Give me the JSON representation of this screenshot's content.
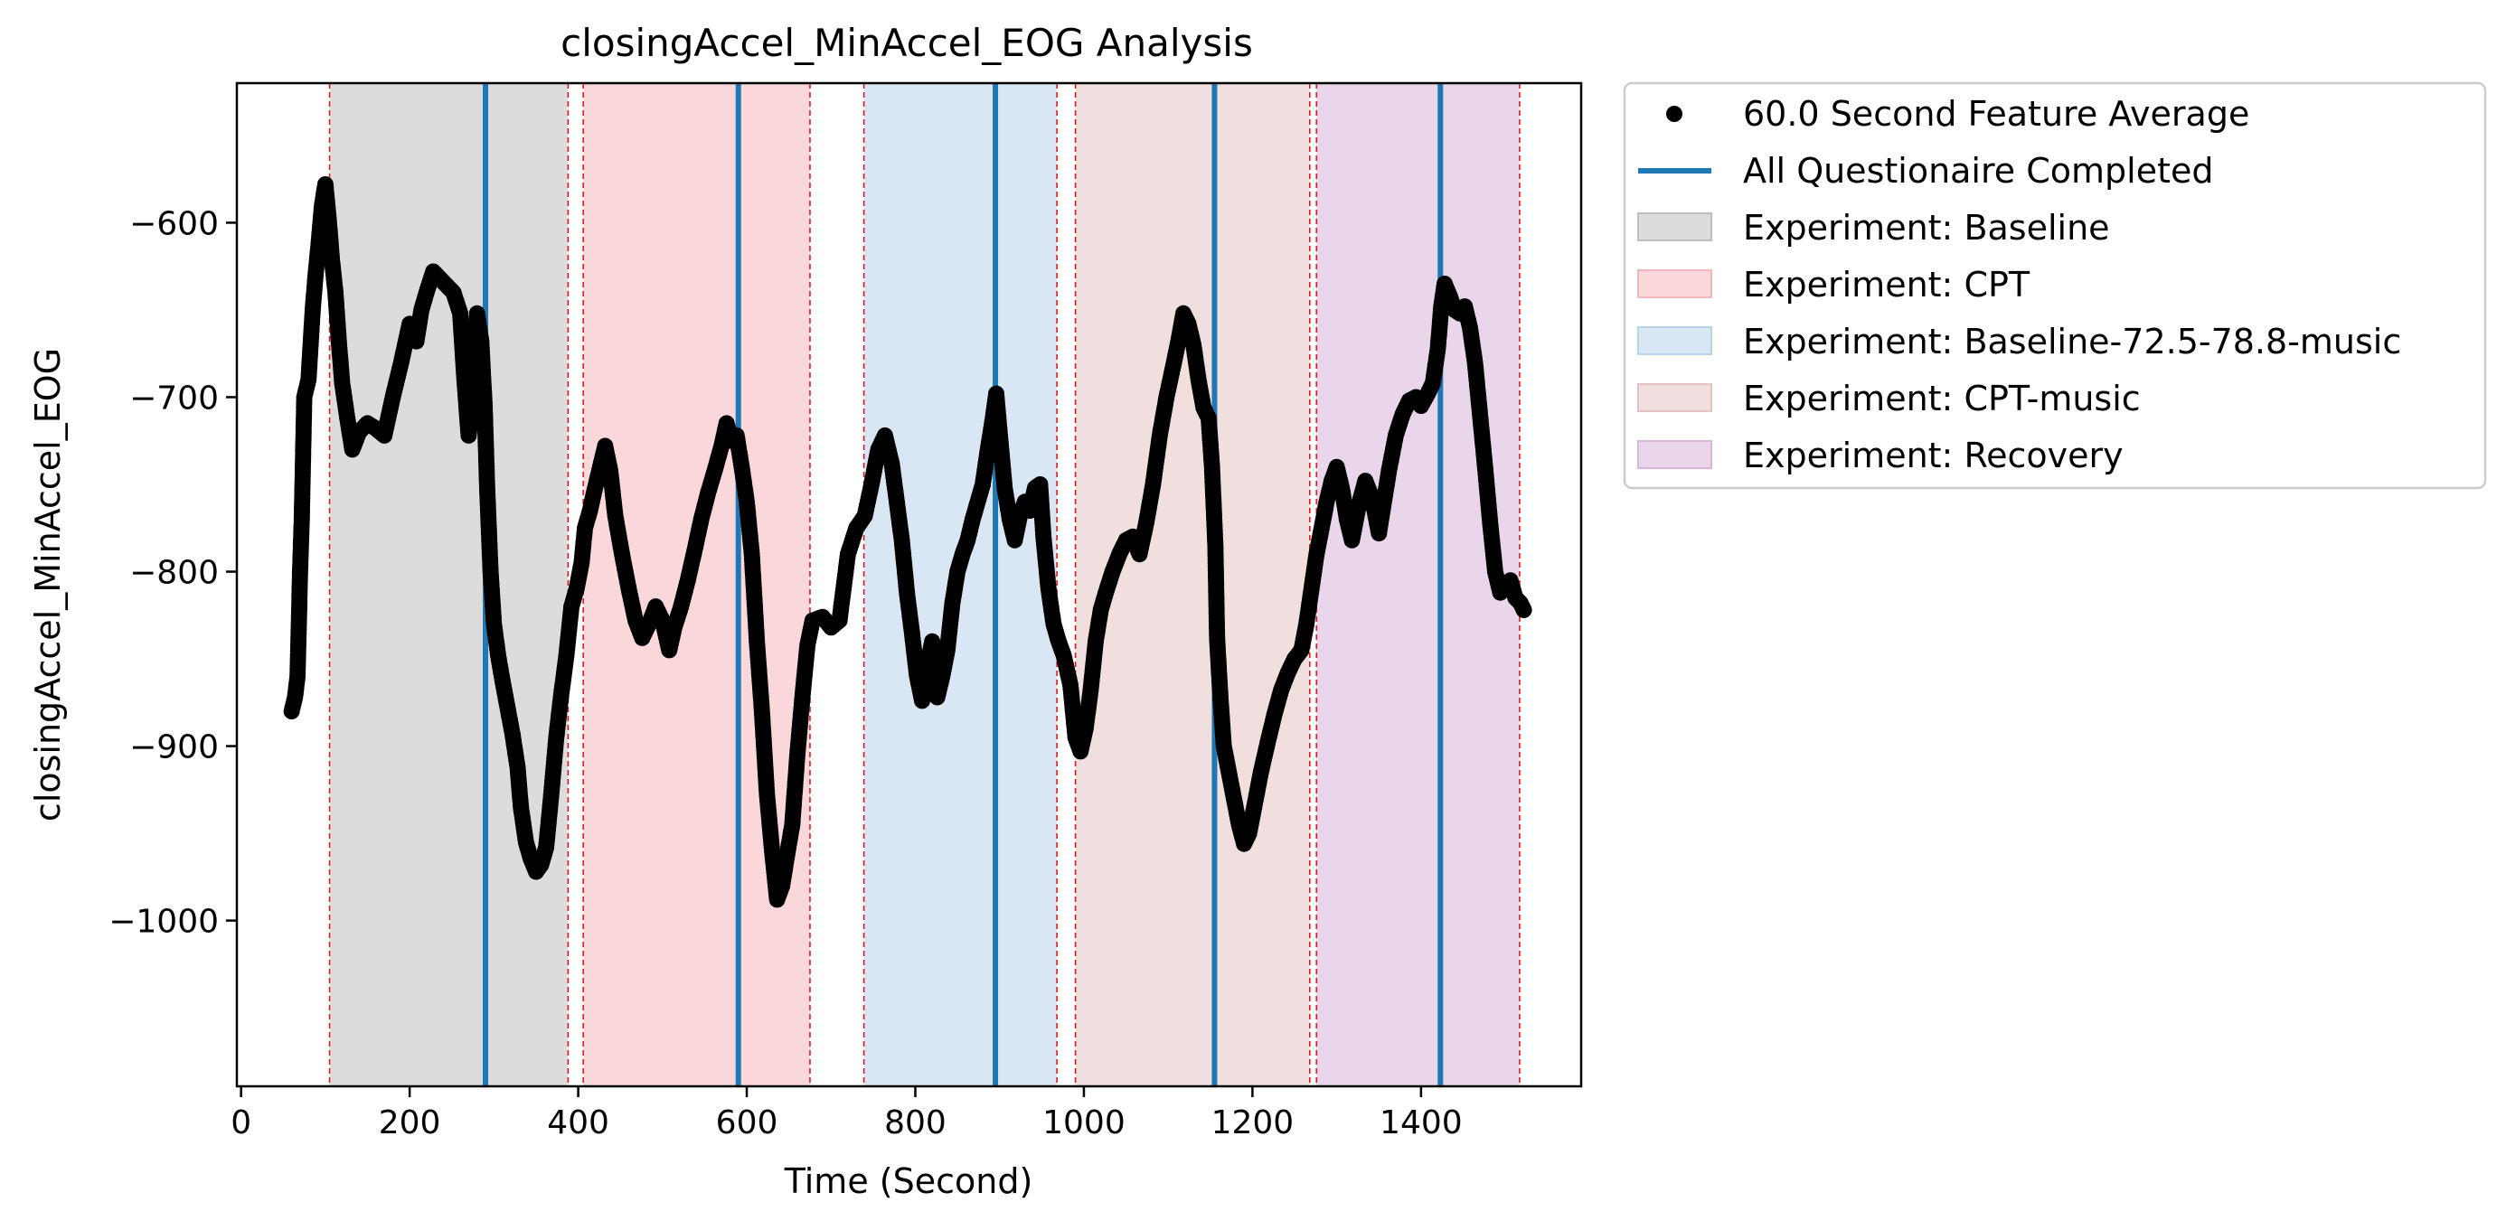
{
  "chart_data": {
    "type": "scatter",
    "title": "closingAccel_MinAccel_EOG Analysis",
    "xlabel": "Time (Second)",
    "ylabel": "closingAccel_MinAccel_EOG",
    "xlim": [
      -5,
      1590
    ],
    "ylim": [
      -1095,
      -520
    ],
    "xticks": [
      0,
      200,
      400,
      600,
      800,
      1000,
      1200,
      1400
    ],
    "yticks": [
      -600,
      -700,
      -800,
      -900,
      -1000
    ],
    "xtick_labels": [
      "0",
      "200",
      "400",
      "600",
      "800",
      "1000",
      "1200",
      "1400"
    ],
    "ytick_labels": [
      "−600",
      "−700",
      "−800",
      "−900",
      "−1000"
    ],
    "grid": false,
    "legend_position": "outside-right-top",
    "series": [
      {
        "name": "60.0 Second Feature Average",
        "marker": "circle",
        "color": "#000000",
        "anchors": [
          [
            60,
            -880
          ],
          [
            64,
            -872
          ],
          [
            67,
            -860
          ],
          [
            70,
            -800
          ],
          [
            72,
            -770
          ],
          [
            75,
            -700
          ],
          [
            80,
            -690
          ],
          [
            85,
            -650
          ],
          [
            88,
            -632
          ],
          [
            92,
            -612
          ],
          [
            96,
            -590
          ],
          [
            100,
            -578
          ],
          [
            104,
            -598
          ],
          [
            108,
            -622
          ],
          [
            112,
            -640
          ],
          [
            116,
            -668
          ],
          [
            120,
            -692
          ],
          [
            126,
            -712
          ],
          [
            132,
            -730
          ],
          [
            140,
            -720
          ],
          [
            150,
            -715
          ],
          [
            160,
            -718
          ],
          [
            170,
            -722
          ],
          [
            180,
            -700
          ],
          [
            190,
            -680
          ],
          [
            200,
            -658
          ],
          [
            208,
            -668
          ],
          [
            214,
            -650
          ],
          [
            220,
            -640
          ],
          [
            228,
            -628
          ],
          [
            240,
            -634
          ],
          [
            252,
            -640
          ],
          [
            260,
            -652
          ],
          [
            265,
            -690
          ],
          [
            270,
            -722
          ],
          [
            275,
            -700
          ],
          [
            280,
            -652
          ],
          [
            285,
            -668
          ],
          [
            289,
            -705
          ],
          [
            292,
            -752
          ],
          [
            296,
            -800
          ],
          [
            300,
            -830
          ],
          [
            305,
            -848
          ],
          [
            310,
            -862
          ],
          [
            315,
            -875
          ],
          [
            322,
            -893
          ],
          [
            328,
            -912
          ],
          [
            332,
            -935
          ],
          [
            338,
            -955
          ],
          [
            344,
            -965
          ],
          [
            350,
            -972
          ],
          [
            356,
            -968
          ],
          [
            362,
            -958
          ],
          [
            368,
            -928
          ],
          [
            374,
            -895
          ],
          [
            380,
            -870
          ],
          [
            386,
            -848
          ],
          [
            392,
            -820
          ],
          [
            398,
            -810
          ],
          [
            404,
            -795
          ],
          [
            408,
            -775
          ],
          [
            414,
            -765
          ],
          [
            420,
            -752
          ],
          [
            426,
            -740
          ],
          [
            432,
            -728
          ],
          [
            438,
            -742
          ],
          [
            444,
            -768
          ],
          [
            452,
            -790
          ],
          [
            460,
            -810
          ],
          [
            468,
            -828
          ],
          [
            476,
            -838
          ],
          [
            484,
            -830
          ],
          [
            492,
            -820
          ],
          [
            500,
            -828
          ],
          [
            508,
            -845
          ],
          [
            514,
            -832
          ],
          [
            522,
            -820
          ],
          [
            530,
            -805
          ],
          [
            538,
            -788
          ],
          [
            546,
            -770
          ],
          [
            554,
            -755
          ],
          [
            562,
            -742
          ],
          [
            570,
            -728
          ],
          [
            576,
            -715
          ],
          [
            582,
            -725
          ],
          [
            588,
            -722
          ],
          [
            594,
            -740
          ],
          [
            600,
            -760
          ],
          [
            606,
            -790
          ],
          [
            612,
            -840
          ],
          [
            618,
            -880
          ],
          [
            624,
            -928
          ],
          [
            630,
            -960
          ],
          [
            636,
            -988
          ],
          [
            642,
            -980
          ],
          [
            648,
            -962
          ],
          [
            654,
            -945
          ],
          [
            660,
            -905
          ],
          [
            666,
            -872
          ],
          [
            672,
            -842
          ],
          [
            678,
            -828
          ],
          [
            690,
            -826
          ],
          [
            700,
            -832
          ],
          [
            710,
            -828
          ],
          [
            720,
            -790
          ],
          [
            730,
            -775
          ],
          [
            740,
            -768
          ],
          [
            748,
            -750
          ],
          [
            756,
            -730
          ],
          [
            764,
            -722
          ],
          [
            772,
            -738
          ],
          [
            778,
            -760
          ],
          [
            784,
            -782
          ],
          [
            790,
            -812
          ],
          [
            796,
            -835
          ],
          [
            802,
            -860
          ],
          [
            808,
            -874
          ],
          [
            814,
            -855
          ],
          [
            820,
            -840
          ],
          [
            826,
            -872
          ],
          [
            832,
            -860
          ],
          [
            838,
            -845
          ],
          [
            844,
            -818
          ],
          [
            850,
            -800
          ],
          [
            856,
            -790
          ],
          [
            862,
            -782
          ],
          [
            868,
            -770
          ],
          [
            874,
            -760
          ],
          [
            880,
            -750
          ],
          [
            886,
            -730
          ],
          [
            892,
            -712
          ],
          [
            896,
            -698
          ],
          [
            900,
            -720
          ],
          [
            906,
            -752
          ],
          [
            912,
            -770
          ],
          [
            918,
            -782
          ],
          [
            924,
            -768
          ],
          [
            930,
            -760
          ],
          [
            936,
            -765
          ],
          [
            942,
            -752
          ],
          [
            948,
            -750
          ],
          [
            952,
            -780
          ],
          [
            958,
            -810
          ],
          [
            964,
            -830
          ],
          [
            970,
            -840
          ],
          [
            976,
            -848
          ],
          [
            984,
            -865
          ],
          [
            990,
            -895
          ],
          [
            996,
            -903
          ],
          [
            1002,
            -890
          ],
          [
            1008,
            -868
          ],
          [
            1014,
            -840
          ],
          [
            1020,
            -822
          ],
          [
            1026,
            -812
          ],
          [
            1034,
            -800
          ],
          [
            1042,
            -790
          ],
          [
            1050,
            -782
          ],
          [
            1058,
            -780
          ],
          [
            1066,
            -790
          ],
          [
            1074,
            -772
          ],
          [
            1082,
            -750
          ],
          [
            1090,
            -722
          ],
          [
            1098,
            -700
          ],
          [
            1106,
            -682
          ],
          [
            1112,
            -668
          ],
          [
            1118,
            -652
          ],
          [
            1124,
            -658
          ],
          [
            1130,
            -670
          ],
          [
            1136,
            -690
          ],
          [
            1142,
            -706
          ],
          [
            1148,
            -712
          ],
          [
            1152,
            -740
          ],
          [
            1156,
            -785
          ],
          [
            1158,
            -838
          ],
          [
            1162,
            -872
          ],
          [
            1166,
            -900
          ],
          [
            1172,
            -915
          ],
          [
            1178,
            -930
          ],
          [
            1184,
            -945
          ],
          [
            1190,
            -956
          ],
          [
            1196,
            -950
          ],
          [
            1202,
            -935
          ],
          [
            1210,
            -915
          ],
          [
            1218,
            -898
          ],
          [
            1226,
            -882
          ],
          [
            1234,
            -868
          ],
          [
            1242,
            -858
          ],
          [
            1250,
            -850
          ],
          [
            1258,
            -845
          ],
          [
            1264,
            -830
          ],
          [
            1270,
            -810
          ],
          [
            1276,
            -790
          ],
          [
            1282,
            -775
          ],
          [
            1288,
            -760
          ],
          [
            1294,
            -748
          ],
          [
            1300,
            -740
          ],
          [
            1306,
            -752
          ],
          [
            1312,
            -770
          ],
          [
            1318,
            -782
          ],
          [
            1326,
            -762
          ],
          [
            1334,
            -748
          ],
          [
            1342,
            -758
          ],
          [
            1350,
            -778
          ],
          [
            1356,
            -760
          ],
          [
            1362,
            -742
          ],
          [
            1370,
            -722
          ],
          [
            1378,
            -710
          ],
          [
            1386,
            -702
          ],
          [
            1394,
            -700
          ],
          [
            1400,
            -705
          ],
          [
            1408,
            -698
          ],
          [
            1414,
            -692
          ],
          [
            1420,
            -672
          ],
          [
            1424,
            -648
          ],
          [
            1428,
            -635
          ],
          [
            1434,
            -642
          ],
          [
            1440,
            -650
          ],
          [
            1446,
            -652
          ],
          [
            1452,
            -648
          ],
          [
            1458,
            -660
          ],
          [
            1464,
            -680
          ],
          [
            1470,
            -710
          ],
          [
            1476,
            -740
          ],
          [
            1482,
            -772
          ],
          [
            1488,
            -800
          ],
          [
            1494,
            -812
          ],
          [
            1500,
            -808
          ],
          [
            1506,
            -805
          ],
          [
            1512,
            -815
          ],
          [
            1518,
            -818
          ],
          [
            1522,
            -822
          ]
        ]
      }
    ],
    "vertical_lines": {
      "name": "All Questionaire Completed",
      "color": "#1f77b4",
      "x": [
        290,
        590,
        895,
        1155,
        1423
      ]
    },
    "regions": [
      {
        "name": "Experiment: Baseline",
        "color": "#bfbfbf",
        "start": 105,
        "end": 388
      },
      {
        "name": "Experiment: CPT",
        "color": "#f4b6bd",
        "start": 406,
        "end": 675
      },
      {
        "name": "Experiment: Baseline-72.5-78.8-music",
        "color": "#b8d3ea",
        "start": 739,
        "end": 968
      },
      {
        "name": "Experiment: CPT-music",
        "color": "#e6c2c2",
        "start": 990,
        "end": 1268
      },
      {
        "name": "Experiment: Recovery",
        "color": "#d9b4db",
        "start": 1276,
        "end": 1517
      }
    ],
    "region_edges": [
      105,
      388,
      406,
      675,
      739,
      968,
      990,
      1268,
      1276,
      1517
    ]
  }
}
